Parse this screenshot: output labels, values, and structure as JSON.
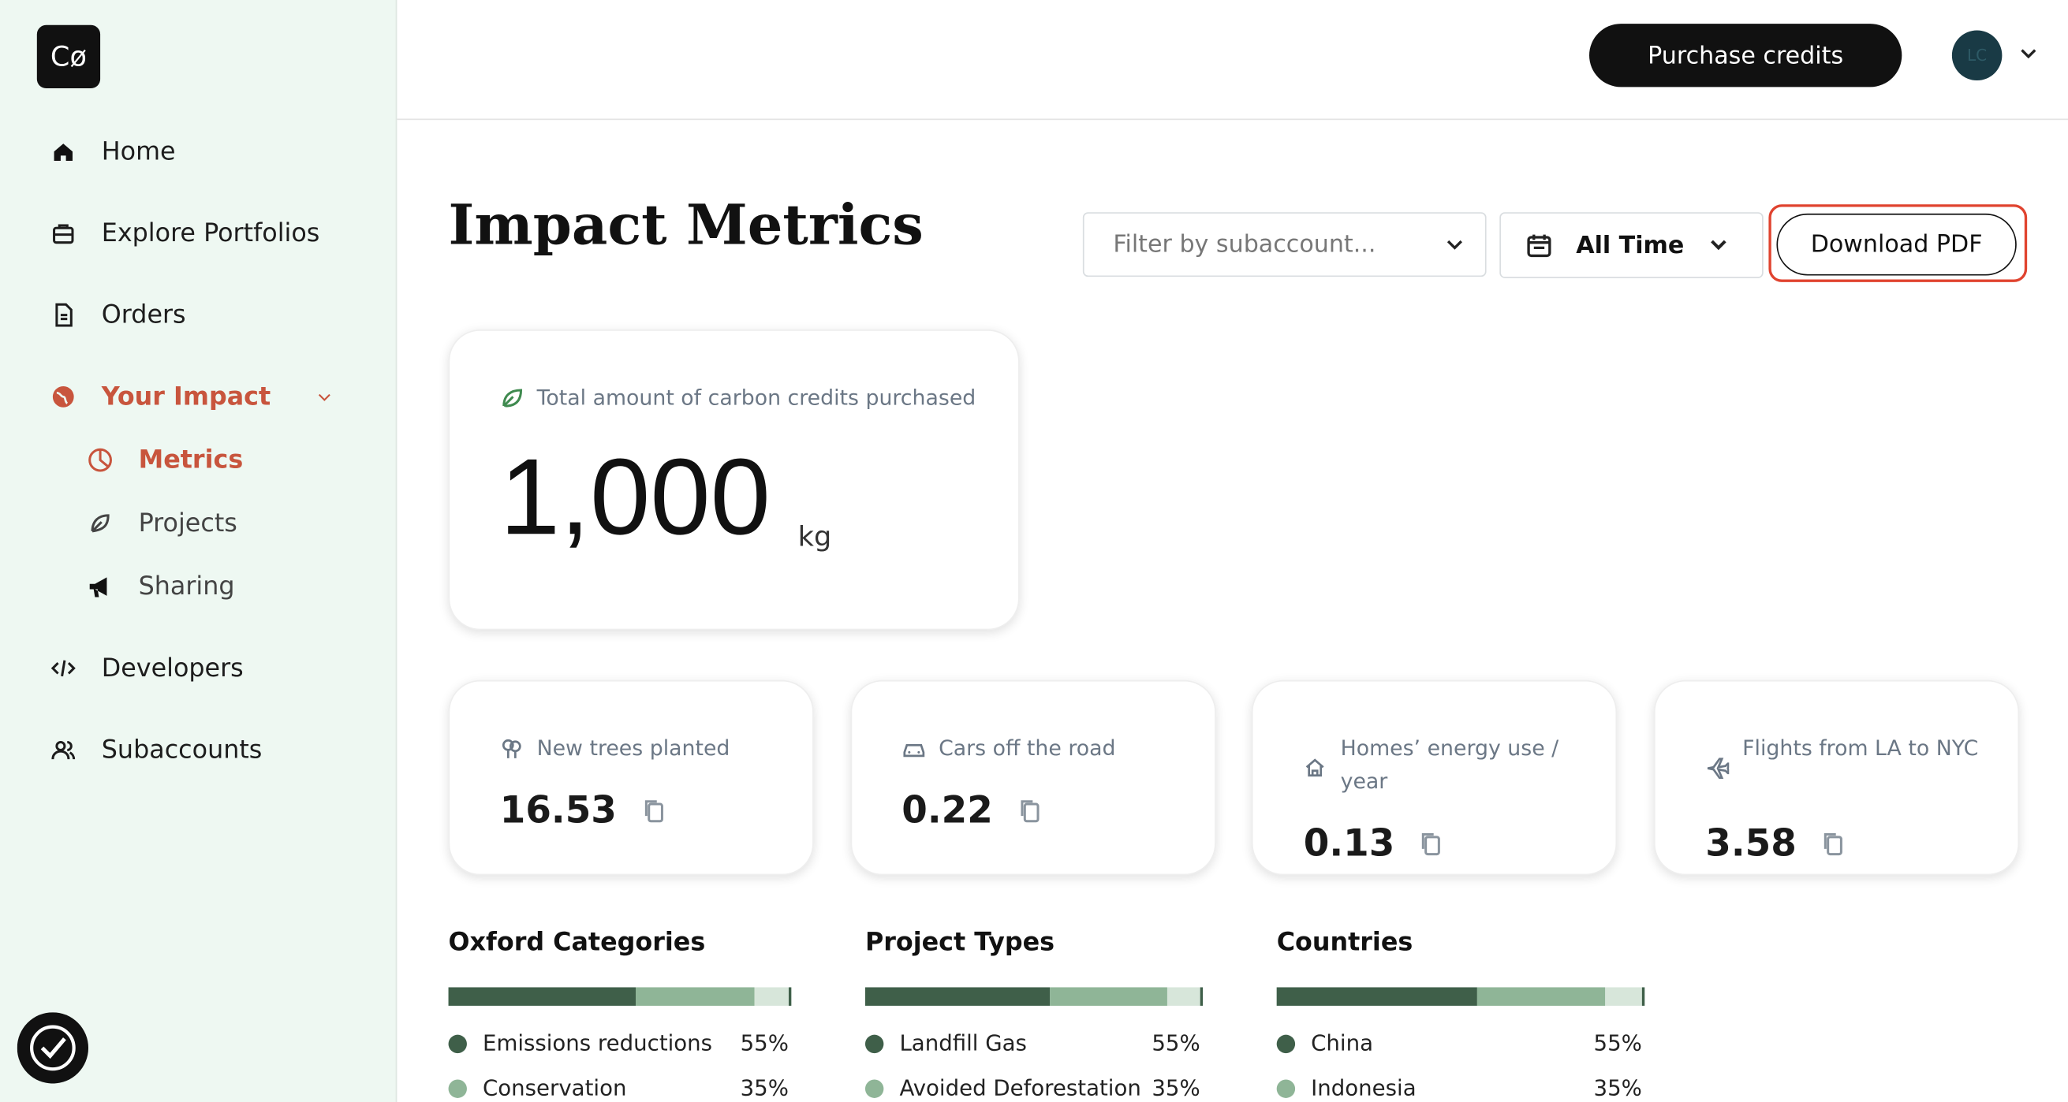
{
  "logo": "Cø",
  "nav": [
    "Home",
    "Explore Portfolios",
    "Orders",
    "Your Impact"
  ],
  "subnav": [
    "Metrics",
    "Projects",
    "Sharing"
  ],
  "nav_bottom": [
    "Developers",
    "Subaccounts"
  ],
  "header": {
    "purchase": "Purchase credits",
    "avatar": "LC"
  },
  "page": {
    "title": "Impact Metrics",
    "filter_placeholder": "Filter by subaccount...",
    "date_range": "All Time",
    "download": "Download PDF"
  },
  "total": {
    "label": "Total amount of carbon credits purchased",
    "value": "1,000",
    "unit": "kg"
  },
  "metrics": [
    {
      "label": "New trees planted",
      "value": "16.53"
    },
    {
      "label": "Cars off the road",
      "value": "0.22"
    },
    {
      "label": "Homes’ energy use / year",
      "value": "0.13"
    },
    {
      "label": "Flights from LA to NYC",
      "value": "3.58"
    }
  ],
  "breakdowns": [
    {
      "title": "Oxford Categories",
      "items": [
        {
          "name": "Emissions reductions",
          "share": "55%"
        },
        {
          "name": "Conservation",
          "share": "35%"
        }
      ]
    },
    {
      "title": "Project Types",
      "items": [
        {
          "name": "Landfill Gas",
          "share": "55%"
        },
        {
          "name": "Avoided Deforestation",
          "share": "35%"
        }
      ]
    },
    {
      "title": "Countries",
      "items": [
        {
          "name": "China",
          "share": "55%"
        },
        {
          "name": "Indonesia",
          "share": "35%"
        }
      ]
    }
  ]
}
